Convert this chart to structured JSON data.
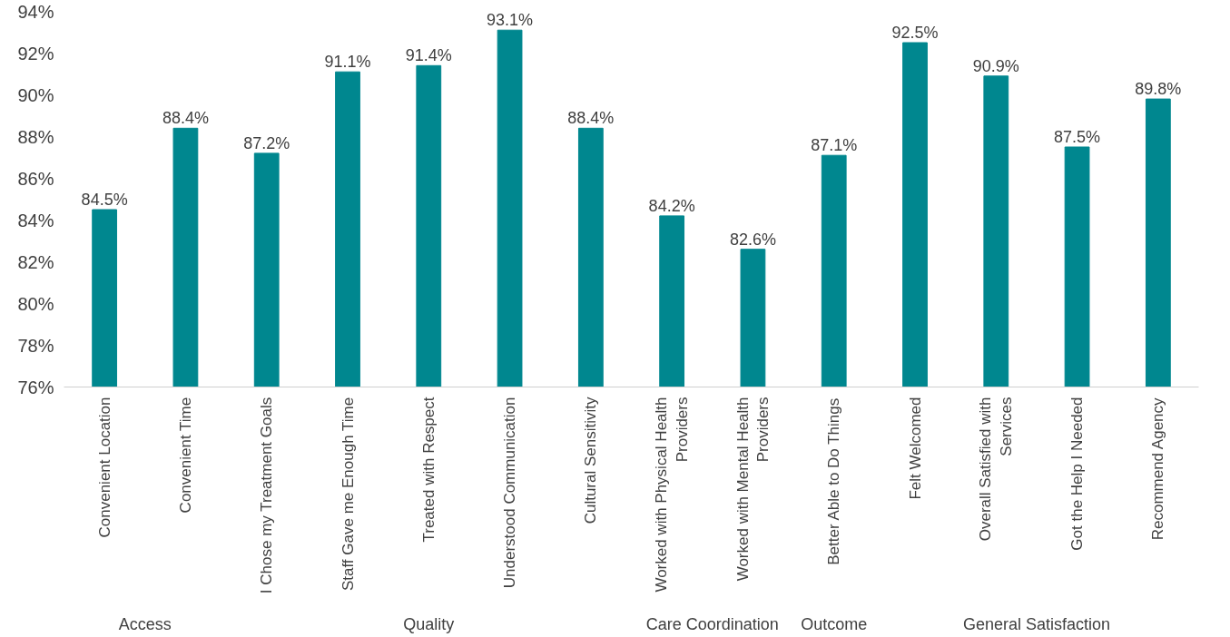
{
  "chart_data": {
    "type": "bar",
    "categories": [
      "Convenient Location",
      "Convenient Time",
      "I Chose my Treatment Goals",
      "Staff Gave me Enough Time",
      "Treated with Respect",
      "Understood Communication",
      "Cultural Sensitivity",
      "Worked with Physical Health Providers",
      "Worked with Mental Health Providers",
      "Better Able to Do Things",
      "Felt Welcomed",
      "Overall Satisfied with Services",
      "Got the Help I Needed",
      "Recommend Agency"
    ],
    "values": [
      84.5,
      88.4,
      87.2,
      91.1,
      91.4,
      93.1,
      88.4,
      84.2,
      82.6,
      87.1,
      92.5,
      90.9,
      87.5,
      89.8
    ],
    "value_labels": [
      "84.5%",
      "88.4%",
      "87.2%",
      "91.1%",
      "91.4%",
      "93.1%",
      "88.4%",
      "84.2%",
      "82.6%",
      "87.1%",
      "92.5%",
      "90.9%",
      "87.5%",
      "89.8%"
    ],
    "color": "#00878f",
    "ylim": [
      76,
      94
    ],
    "yticks": [
      {
        "value": 76,
        "label": "76%"
      },
      {
        "value": 78,
        "label": "78%"
      },
      {
        "value": 80,
        "label": "80%"
      },
      {
        "value": 82,
        "label": "82%"
      },
      {
        "value": 84,
        "label": "84%"
      },
      {
        "value": 86,
        "label": "86%"
      },
      {
        "value": 88,
        "label": "88%"
      },
      {
        "value": 90,
        "label": "90%"
      },
      {
        "value": 92,
        "label": "92%"
      },
      {
        "value": 94,
        "label": "94%"
      }
    ],
    "annotations": [
      "Access",
      "Quality",
      "Care Coordination",
      "Outcome",
      "General Satisfaction"
    ],
    "grid": false
  }
}
